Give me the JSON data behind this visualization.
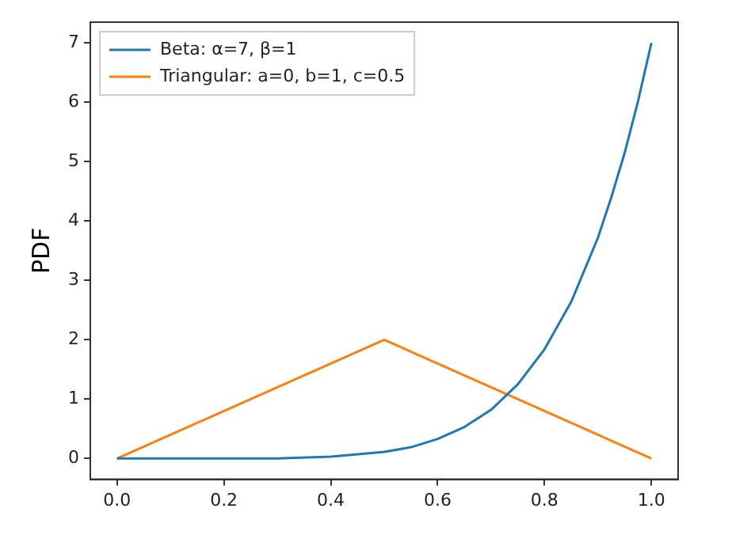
{
  "chart_data": {
    "type": "line",
    "ylabel": "PDF",
    "xlim": [
      -0.05,
      1.05
    ],
    "ylim": [
      -0.35,
      7.35
    ],
    "xticks": [
      {
        "value": 0,
        "label": "0.0"
      },
      {
        "value": 0.2,
        "label": "0.2"
      },
      {
        "value": 0.4,
        "label": "0.4"
      },
      {
        "value": 0.6,
        "label": "0.6"
      },
      {
        "value": 0.8,
        "label": "0.8"
      },
      {
        "value": 1,
        "label": "1.0"
      }
    ],
    "yticks": [
      0,
      1,
      2,
      3,
      4,
      5,
      6,
      7
    ],
    "legend": "top left",
    "grid": false,
    "marker": "none",
    "line_style": "solid",
    "series": [
      {
        "name": "Beta: α=7, β=1",
        "color": "#1f77b4",
        "x": [
          0,
          0.1,
          0.2,
          0.3,
          0.4,
          0.5,
          0.55,
          0.6,
          0.65,
          0.7,
          0.75,
          0.8,
          0.85,
          0.9,
          0.925,
          0.95,
          0.975,
          1
        ],
        "values": [
          0,
          0,
          0,
          0,
          0.03,
          0.11,
          0.19,
          0.33,
          0.53,
          0.82,
          1.25,
          1.84,
          2.64,
          3.72,
          4.4,
          5.15,
          6.02,
          7
        ]
      },
      {
        "name": "Triangular: a=0, b=1, c=0.5",
        "color": "#ff7f0e",
        "x": [
          0,
          0.5,
          1
        ],
        "values": [
          0,
          2,
          0
        ]
      }
    ]
  }
}
